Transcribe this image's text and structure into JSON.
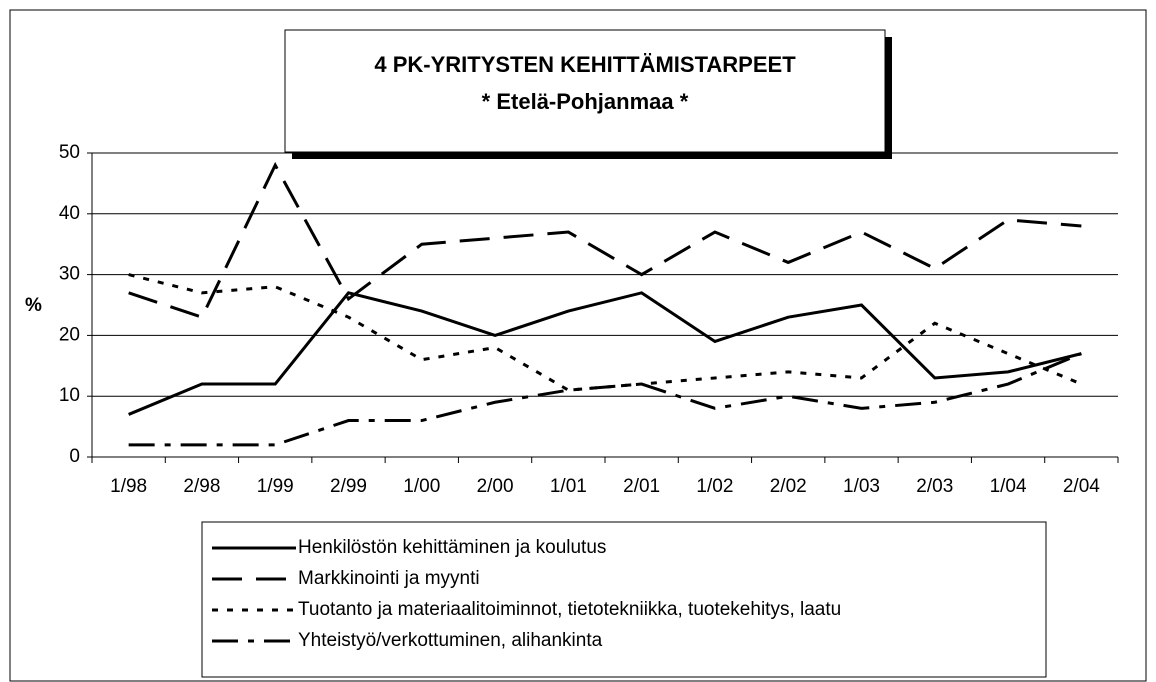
{
  "chart_data": {
    "type": "line",
    "title": "4 PK-YRITYSTEN KEHITTÄMISTARPEET",
    "subtitle": "* Etelä-Pohjanmaa *",
    "y_label": "%",
    "categories": [
      "1/98",
      "2/98",
      "1/99",
      "2/99",
      "1/00",
      "2/00",
      "1/01",
      "2/01",
      "1/02",
      "2/02",
      "1/03",
      "2/03",
      "1/04",
      "2/04"
    ],
    "series": [
      {
        "name": "Henkilöstön kehittäminen ja koulutus",
        "color": "#000000",
        "values": [
          7,
          12,
          12,
          27,
          24,
          20,
          24,
          27,
          19,
          23,
          25,
          13,
          14,
          17
        ]
      },
      {
        "name": "Markkinointi ja myynti",
        "color": "#000000",
        "values": [
          27,
          23,
          48,
          26,
          35,
          36,
          37,
          30,
          37,
          32,
          37,
          31,
          39,
          38
        ]
      },
      {
        "name": "Tuotanto ja materiaalitoiminnot, tietotekniikka, tuotekehitys, laatu",
        "color": "#000000",
        "values": [
          30,
          27,
          28,
          23,
          16,
          18,
          11,
          12,
          13,
          14,
          13,
          22,
          17,
          12
        ]
      },
      {
        "name": "Yhteistyö/verkottuminen, alihankinta",
        "color": "#000000",
        "values": [
          2,
          2,
          2,
          6,
          6,
          9,
          11,
          12,
          8,
          10,
          8,
          9,
          12,
          17
        ]
      }
    ],
    "ylim": [
      0,
      50
    ],
    "yticks": [
      0,
      10,
      20,
      30,
      40,
      50
    ],
    "grid": true,
    "legend": "bottom"
  }
}
